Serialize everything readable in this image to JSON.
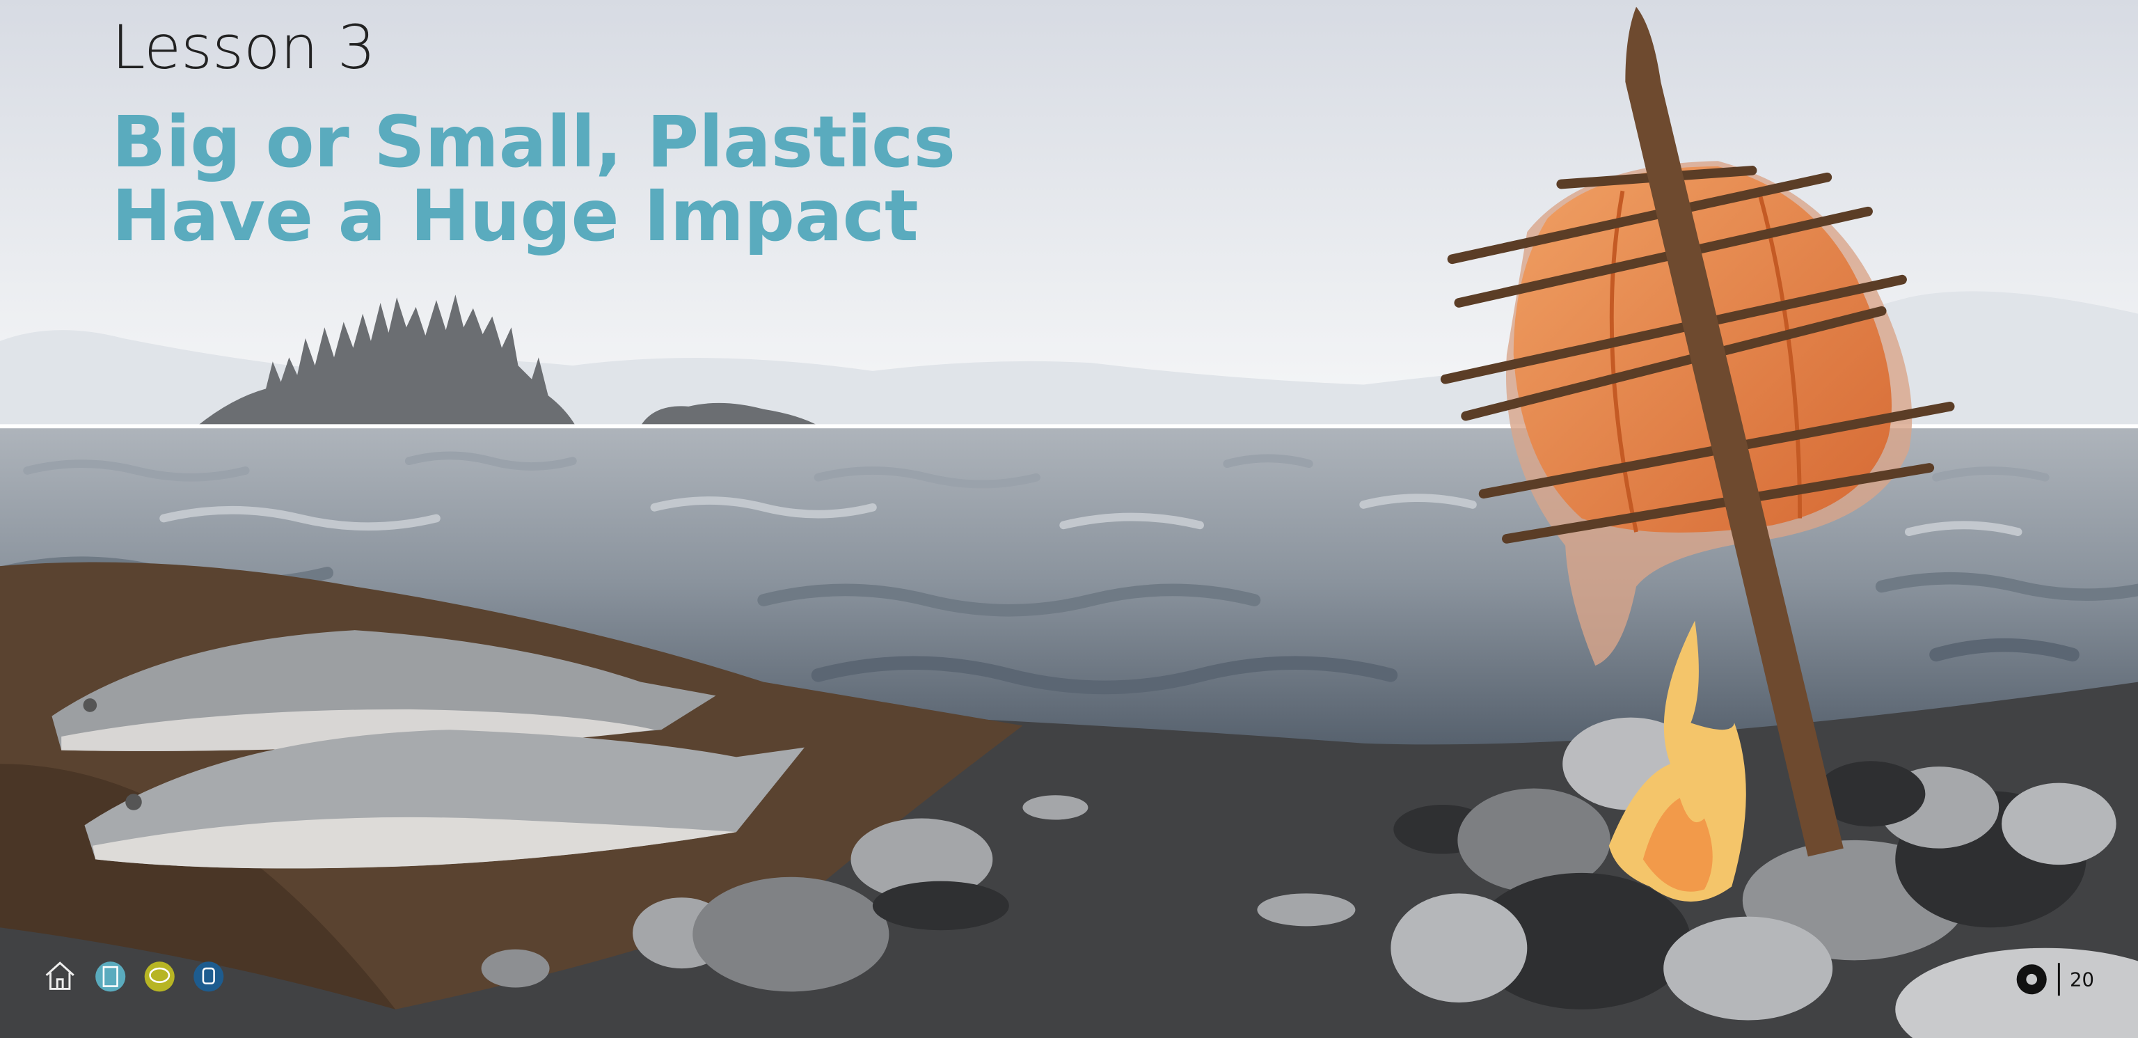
{
  "header": {
    "subtitle": "Lesson 3",
    "title_lines": [
      "Big or Small, Plastics",
      "Have a Huge Impact"
    ]
  },
  "footer": {
    "page_number": "20"
  }
}
